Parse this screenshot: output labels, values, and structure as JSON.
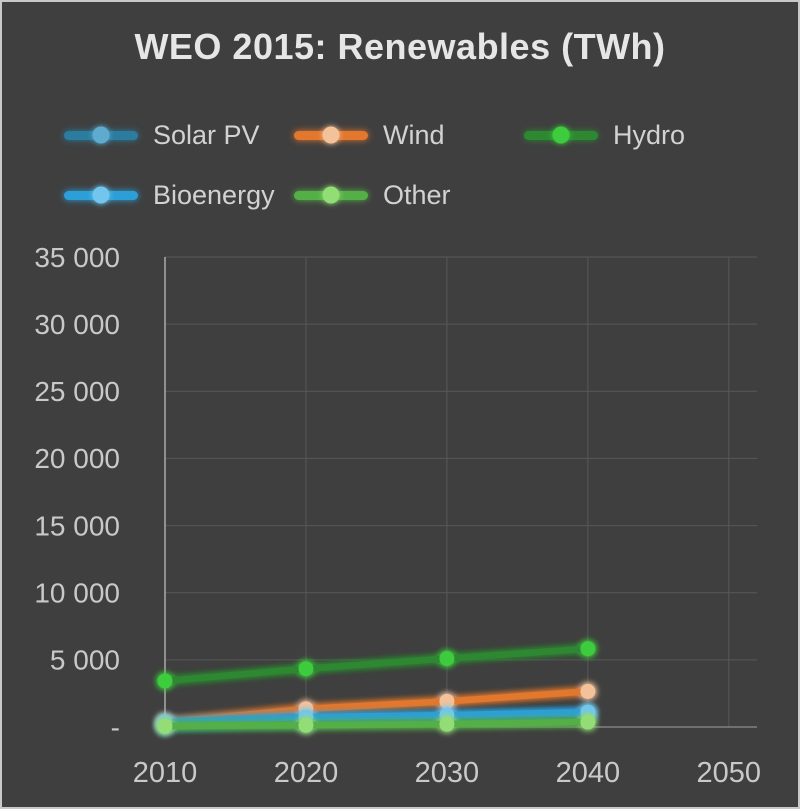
{
  "title": "WEO 2015: Renewables (TWh)",
  "colors": {
    "background": "#3F3F3F",
    "border": "#C9C9C9",
    "title_text": "#E6E6E6",
    "legend_text": "#D2D2D2",
    "axis_text": "#C9C9C9",
    "gridline": "#585858",
    "y_axis_line": "#ABABAB",
    "x_axis_line": "#8E8E8E"
  },
  "chart_data": {
    "type": "line",
    "title": "WEO 2015: Renewables (TWh)",
    "x": [
      2010,
      2020,
      2030,
      2040
    ],
    "series": [
      {
        "name": "Solar PV",
        "line_color": "#2B7C9E",
        "marker_color": "#5FABD0",
        "values": [
          32,
          340,
          660,
          990
        ]
      },
      {
        "name": "Wind",
        "line_color": "#E2772E",
        "marker_color": "#F3C29B",
        "values": [
          342,
          1350,
          1910,
          2650
        ]
      },
      {
        "name": "Hydro",
        "line_color": "#2E8832",
        "marker_color": "#3ECC3E",
        "values": [
          3430,
          4340,
          5100,
          5830
        ]
      },
      {
        "name": "Bioenergy",
        "line_color": "#2D9FD8",
        "marker_color": "#72C6EE",
        "values": [
          331,
          740,
          880,
          1100
        ]
      },
      {
        "name": "Other",
        "line_color": "#55AF47",
        "marker_color": "#93DD77",
        "values": [
          71,
          130,
          210,
          370
        ]
      }
    ],
    "x_ticks": [
      {
        "value": 2010,
        "label": "2010"
      },
      {
        "value": 2020,
        "label": "2020"
      },
      {
        "value": 2030,
        "label": "2030"
      },
      {
        "value": 2040,
        "label": "2040"
      },
      {
        "value": 2050,
        "label": "2050"
      }
    ],
    "y_ticks": [
      {
        "value": 0,
        "label": "-"
      },
      {
        "value": 5000,
        "label": "5 000"
      },
      {
        "value": 10000,
        "label": "10 000"
      },
      {
        "value": 15000,
        "label": "15 000"
      },
      {
        "value": 20000,
        "label": "20 000"
      },
      {
        "value": 25000,
        "label": "25 000"
      },
      {
        "value": 30000,
        "label": "30 000"
      },
      {
        "value": 35000,
        "label": "35 000"
      }
    ],
    "ylim": [
      0,
      35000
    ],
    "xlim": [
      2010,
      2052
    ],
    "xlabel": "",
    "ylabel": "",
    "grid": true,
    "legend_position": "top-left two rows",
    "style": "glowing thick lines with round markers on dark background"
  }
}
